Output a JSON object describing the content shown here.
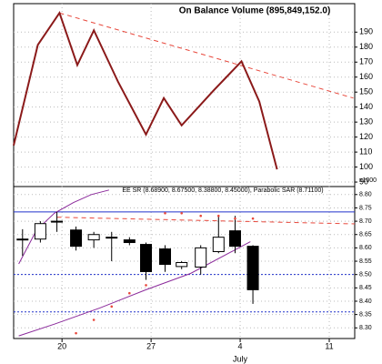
{
  "chart_data": [
    {
      "type": "line",
      "title": "On Balance Volume (895,849,152.0)",
      "y_axis_label": "x1000",
      "x": [
        16.2,
        18.1,
        19.8,
        21.2,
        22.5,
        24.4,
        26.6,
        28.0,
        29.4,
        31.9,
        34.1,
        35.5,
        36.9
      ],
      "values": [
        114.4,
        181.5,
        202.8,
        168,
        191.2,
        157,
        121.7,
        146,
        127.8,
        151,
        170.5,
        143.7,
        98.5
      ],
      "color": "#8b1a1a",
      "trendlines": [
        {
          "x": [
            19.8,
            42.9
          ],
          "y": [
            202.8,
            146
          ],
          "color": "#e8483c",
          "dash": true
        }
      ],
      "xlim": [
        16.2,
        43.0
      ],
      "xticks": [
        20,
        27,
        34,
        41
      ],
      "ylim": [
        87,
        209
      ],
      "yticks": [
        90,
        100,
        110,
        120,
        130,
        140,
        150,
        160,
        170,
        180,
        190
      ],
      "grid": true
    },
    {
      "type": "candlestick",
      "title": "EE SR (8.68900, 8.67500, 8.38800, 8.45000), Parabolic SAR (8.71100)",
      "x": [
        16.9,
        18.3,
        19.6,
        21.1,
        22.5,
        23.9,
        25.3,
        26.6,
        28.1,
        29.4,
        30.9,
        32.3,
        33.6,
        35.0
      ],
      "open": [
        8.63,
        8.633,
        8.7,
        8.667,
        8.63,
        8.64,
        8.63,
        8.613,
        8.596,
        8.53,
        8.528,
        8.586,
        8.664,
        8.606
      ],
      "high": [
        8.67,
        8.7,
        8.735,
        8.68,
        8.66,
        8.66,
        8.64,
        8.62,
        8.61,
        8.55,
        8.61,
        8.72,
        8.72,
        8.61
      ],
      "low": [
        8.57,
        8.62,
        8.66,
        8.59,
        8.6,
        8.55,
        8.61,
        8.48,
        8.51,
        8.52,
        8.5,
        8.58,
        8.58,
        8.39
      ],
      "close": [
        8.633,
        8.691,
        8.7,
        8.606,
        8.65,
        8.64,
        8.62,
        8.511,
        8.538,
        8.545,
        8.6,
        8.64,
        8.606,
        8.443
      ],
      "sar": {
        "x": [
          21.1,
          22.5,
          23.9,
          25.3,
          26.6,
          28.1,
          29.4,
          30.9,
          32.3,
          33.6,
          35.0
        ],
        "values": [
          8.28,
          8.33,
          8.38,
          8.43,
          8.46,
          8.73,
          8.73,
          8.72,
          8.72,
          8.71,
          8.71
        ],
        "color": "#e8483c"
      },
      "trendlines": [
        {
          "x": [
            16.6,
            18,
            19.4,
            20.9,
            22.3,
            23.7
          ],
          "y": [
            8.54,
            8.667,
            8.73,
            8.77,
            8.8,
            8.817
          ],
          "color": "#8b2a9b",
          "dash": false
        },
        {
          "x": [
            16.6,
            19.4,
            23,
            26.6,
            30.1,
            34.8
          ],
          "y": [
            8.27,
            8.314,
            8.375,
            8.443,
            8.504,
            8.623
          ],
          "color": "#8b2a9b",
          "dash": false
        },
        {
          "x": [
            19.6,
            43.0
          ],
          "y": [
            8.715,
            8.69
          ],
          "color": "#e8483c",
          "dash": true
        }
      ],
      "hlines": [
        {
          "value": 8.735,
          "color": "#2233cc",
          "dash": false
        },
        {
          "value": 8.5,
          "color": "#2233cc",
          "dash": true
        },
        {
          "value": 8.36,
          "color": "#2233cc",
          "dash": true
        }
      ],
      "xlim": [
        16.2,
        43.0
      ],
      "xticks": [
        20,
        27,
        {
          "value": 34,
          "label": "4"
        },
        {
          "value": 41,
          "label": "11"
        }
      ],
      "x_annotation": {
        "value": 34,
        "label": "July"
      },
      "ylim": [
        8.26,
        8.83
      ],
      "yticks": [
        {
          "value": 8.3,
          "label": "8.30"
        },
        {
          "value": 8.35,
          "label": "8.35"
        },
        {
          "value": 8.4,
          "label": "8.40"
        },
        {
          "value": 8.45,
          "label": "8.45"
        },
        {
          "value": 8.5,
          "label": "8.50"
        },
        {
          "value": 8.55,
          "label": "8.55"
        },
        {
          "value": 8.6,
          "label": "8.60"
        },
        {
          "value": 8.65,
          "label": "8.65"
        },
        {
          "value": 8.7,
          "label": "8.70"
        },
        {
          "value": 8.75,
          "label": "8.75"
        },
        {
          "value": 8.8,
          "label": "8.80"
        }
      ],
      "grid": true
    }
  ]
}
